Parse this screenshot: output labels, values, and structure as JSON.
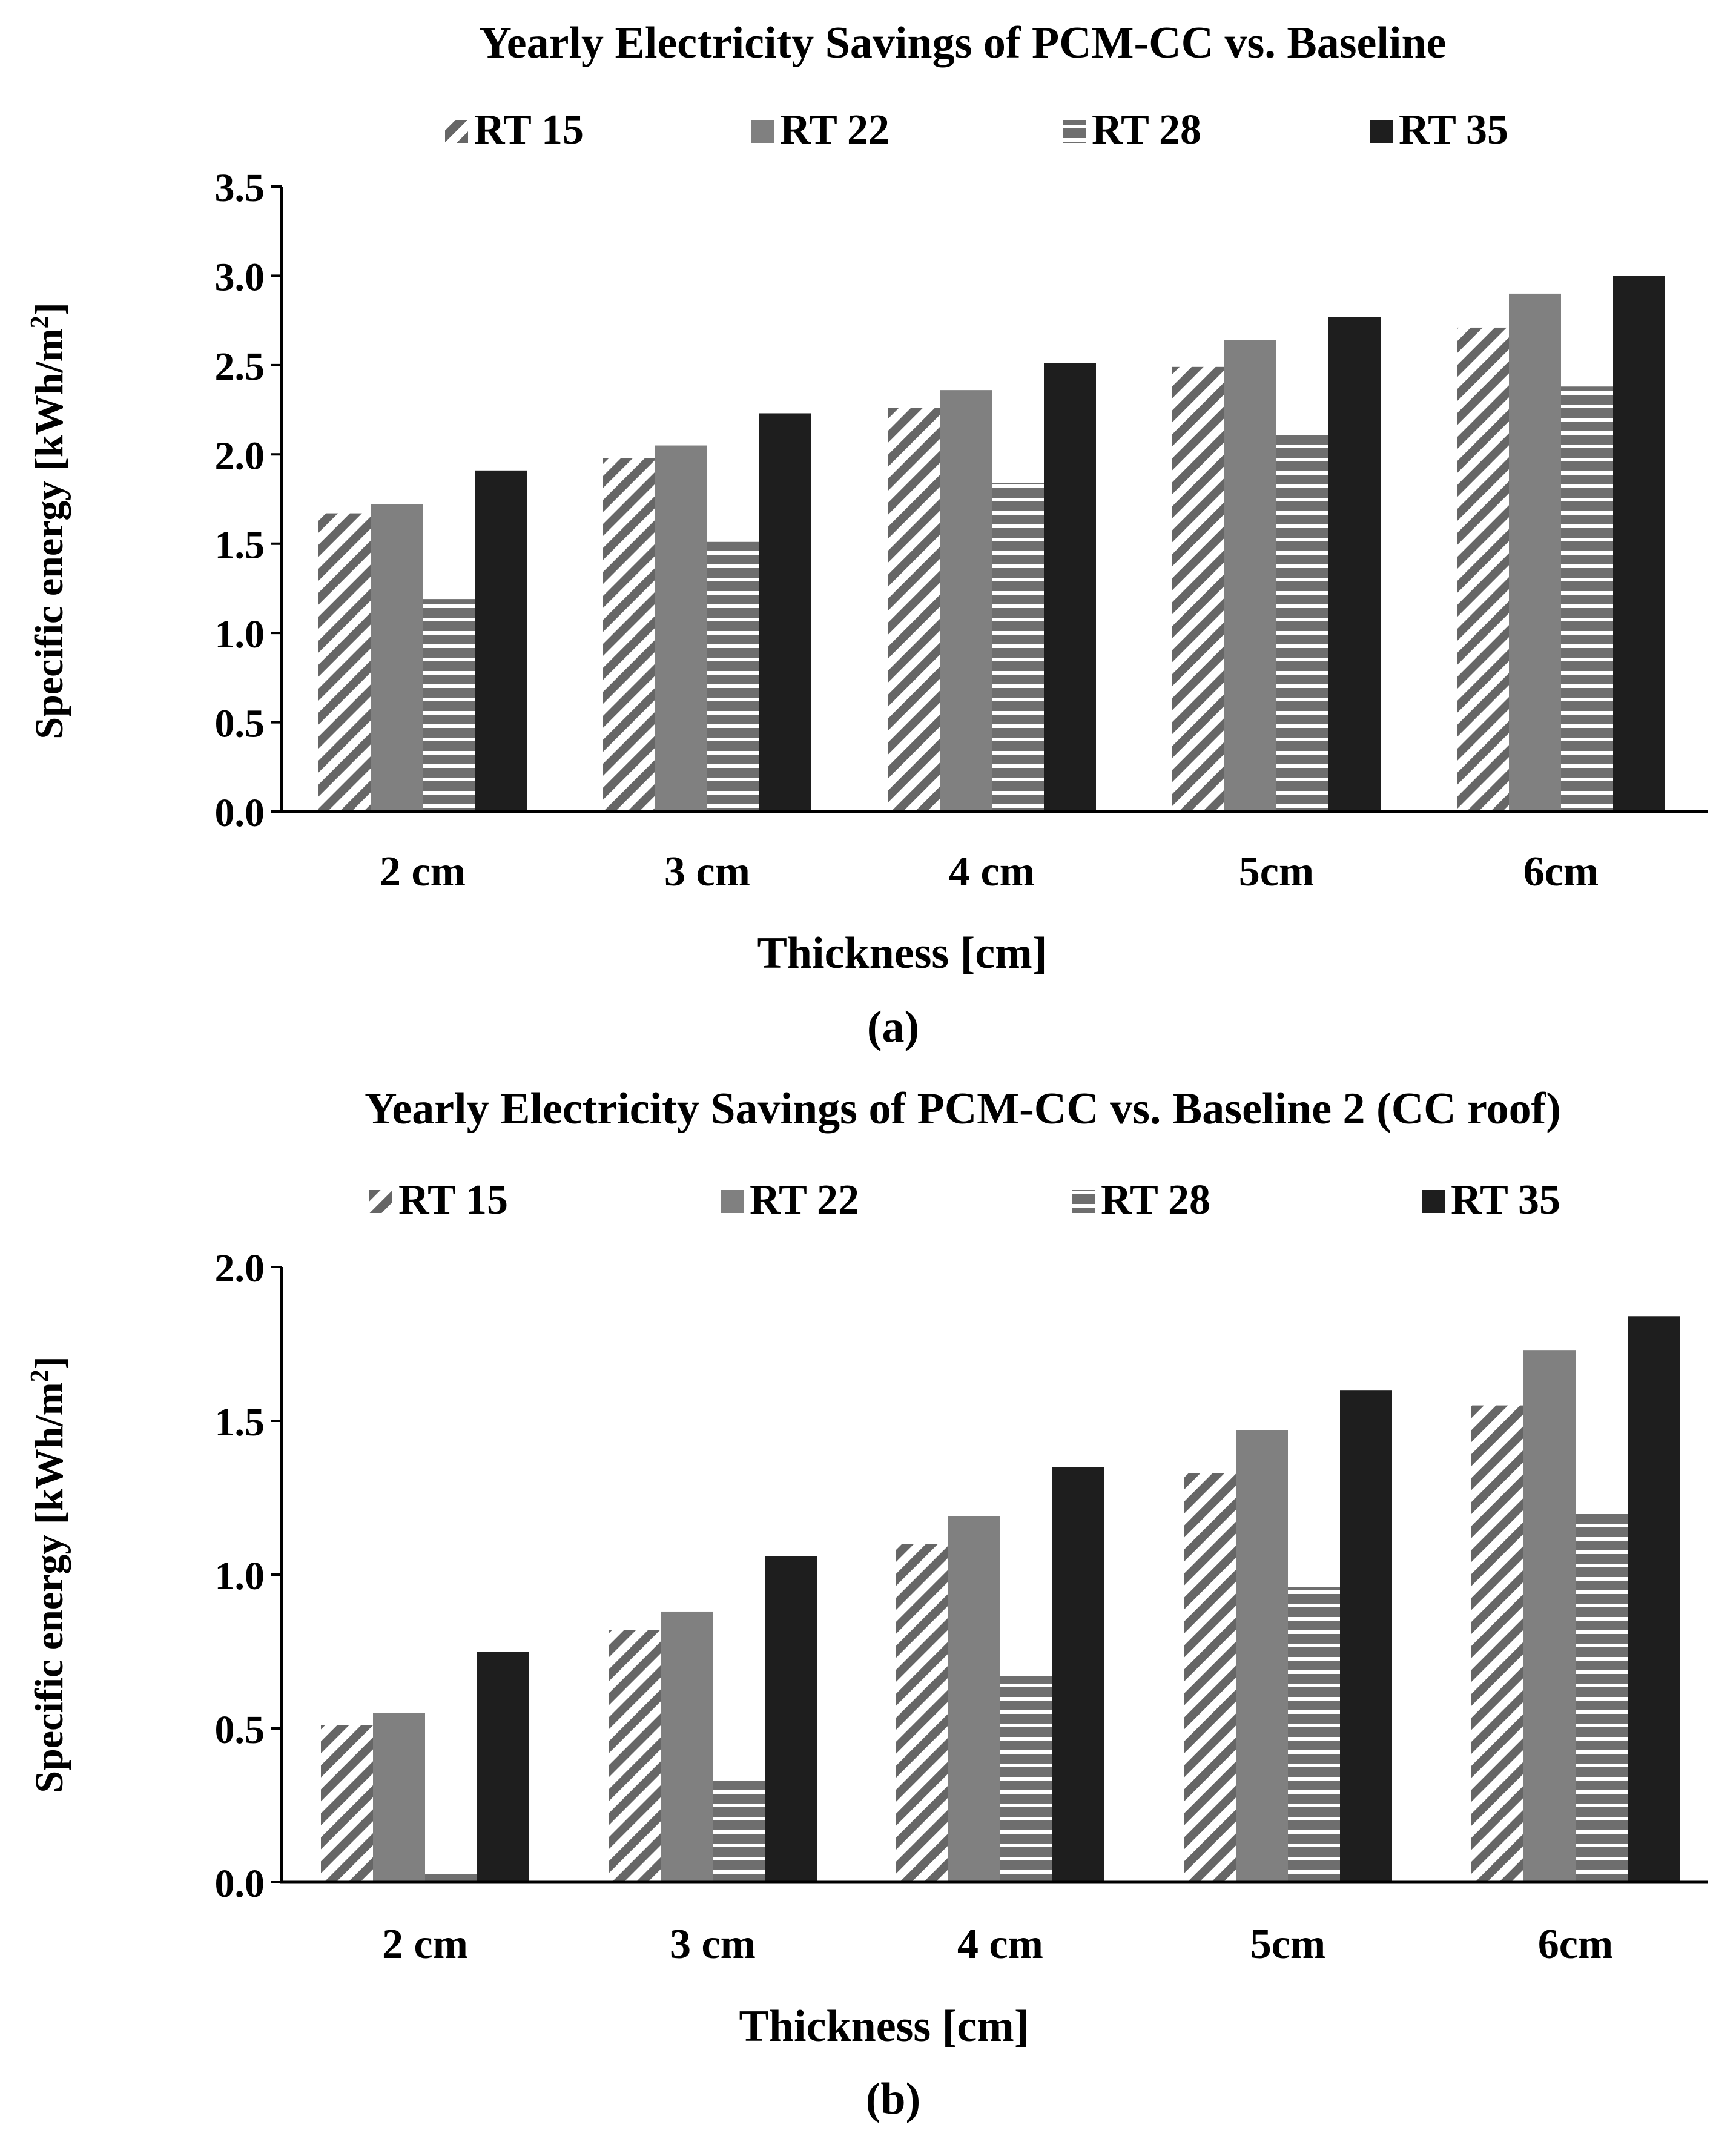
{
  "chart_data": [
    {
      "type": "bar",
      "title": "Yearly Electricity Savings of PCM-CC vs. Baseline",
      "xlabel": "Thickness [cm]",
      "ylabel": "Specific energy [kWh/m",
      "ylabel_sup": "2",
      "ylabel_close": "]",
      "caption": "(a)",
      "ylim": [
        0,
        3.5
      ],
      "yticks": [
        "0.0",
        "0.5",
        "1.0",
        "1.5",
        "2.0",
        "2.5",
        "3.0",
        "3.5"
      ],
      "categories": [
        "2 cm",
        "3 cm",
        "4 cm",
        "5cm",
        "6cm"
      ],
      "legend_position": "top",
      "series": [
        {
          "name": "RT 15",
          "pattern": "diagonal-hatch",
          "color": "#666666",
          "values": [
            1.67,
            1.98,
            2.26,
            2.49,
            2.71
          ]
        },
        {
          "name": "RT 22",
          "pattern": "solid",
          "color": "#808080",
          "values": [
            1.72,
            2.05,
            2.36,
            2.64,
            2.9
          ]
        },
        {
          "name": "RT 28",
          "pattern": "horizontal-lines",
          "color": "#6e6e6e",
          "values": [
            1.19,
            1.51,
            1.84,
            2.12,
            2.38
          ]
        },
        {
          "name": "RT 35",
          "pattern": "solid",
          "color": "#1e1e1e",
          "values": [
            1.91,
            2.23,
            2.51,
            2.77,
            3.0
          ]
        }
      ]
    },
    {
      "type": "bar",
      "title": "Yearly Electricity Savings of PCM-CC vs. Baseline 2 (CC roof)",
      "xlabel": "Thickness [cm]",
      "ylabel": "Specific energy [kWh/m",
      "ylabel_sup": "2",
      "ylabel_close": "]",
      "caption": "(b)",
      "ylim": [
        0,
        2.0
      ],
      "yticks": [
        "0.0",
        "0.5",
        "1.0",
        "1.5",
        "2.0"
      ],
      "categories": [
        "2 cm",
        "3 cm",
        "4 cm",
        "5cm",
        "6cm"
      ],
      "legend_position": "top",
      "series": [
        {
          "name": "RT 15",
          "pattern": "diagonal-hatch",
          "color": "#666666",
          "values": [
            0.51,
            0.82,
            1.1,
            1.33,
            1.55
          ]
        },
        {
          "name": "RT 22",
          "pattern": "solid",
          "color": "#808080",
          "values": [
            0.55,
            0.88,
            1.19,
            1.47,
            1.73
          ]
        },
        {
          "name": "RT 28",
          "pattern": "horizontal-lines",
          "color": "#6e6e6e",
          "values": [
            0.03,
            0.34,
            0.67,
            0.96,
            1.21
          ]
        },
        {
          "name": "RT 35",
          "pattern": "solid",
          "color": "#1e1e1e",
          "values": [
            0.75,
            1.06,
            1.35,
            1.6,
            1.84
          ]
        }
      ]
    }
  ]
}
